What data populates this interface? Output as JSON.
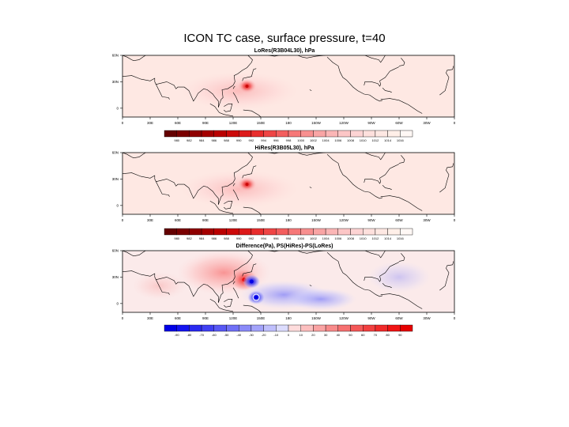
{
  "figure": {
    "title": "ICON TC case, surface pressure, t=40"
  },
  "chart_data": [
    {
      "type": "heatmap",
      "title": "LoRes(R3B04L30), hPa",
      "x_tick_labels": [
        "0",
        "30E",
        "60E",
        "90E",
        "120E",
        "150E",
        "180",
        "150W",
        "120W",
        "90W",
        "60W",
        "30W",
        "0"
      ],
      "y_tick_labels": [
        "60N",
        "30N",
        "0"
      ],
      "xlim": [
        0,
        360
      ],
      "ylim": [
        -10,
        60
      ],
      "colorbar": {
        "labels": [
          "980",
          "982",
          "984",
          "986",
          "988",
          "990",
          "992",
          "994",
          "996",
          "998",
          "1000",
          "1002",
          "1004",
          "1006",
          "1008",
          "1010",
          "1012",
          "1014",
          "1016"
        ],
        "colors": [
          "#640000",
          "#7a0000",
          "#8f0000",
          "#a50000",
          "#ba0000",
          "#cc0a0a",
          "#dd1a1a",
          "#e82d2d",
          "#ef4545",
          "#f35e5e",
          "#f67878",
          "#f89090",
          "#f9a5a5",
          "#fbb6b6",
          "#fcc6c6",
          "#fdd4d4",
          "#fee0dd",
          "#fee8e3",
          "#ffefe8",
          "#fff8f5"
        ]
      },
      "background_value": 1014,
      "storm_center": {
        "lon": 135,
        "lat": 25
      },
      "storm_min_value": 990
    },
    {
      "type": "heatmap",
      "title": "HiRes(R3B05L30), hPa",
      "x_tick_labels": [
        "0",
        "30E",
        "60E",
        "90E",
        "120E",
        "150E",
        "180",
        "150W",
        "120W",
        "90W",
        "60W",
        "30W",
        "0"
      ],
      "y_tick_labels": [
        "60N",
        "30N",
        "0"
      ],
      "xlim": [
        0,
        360
      ],
      "ylim": [
        -10,
        60
      ],
      "colorbar": {
        "labels": [
          "980",
          "982",
          "984",
          "986",
          "988",
          "990",
          "992",
          "994",
          "996",
          "998",
          "1000",
          "1002",
          "1004",
          "1006",
          "1008",
          "1010",
          "1012",
          "1014",
          "1016"
        ],
        "colors": [
          "#640000",
          "#7a0000",
          "#8f0000",
          "#a50000",
          "#ba0000",
          "#cc0a0a",
          "#dd1a1a",
          "#e82d2d",
          "#ef4545",
          "#f35e5e",
          "#f67878",
          "#f89090",
          "#f9a5a5",
          "#fbb6b6",
          "#fcc6c6",
          "#fdd4d4",
          "#fee0dd",
          "#fee8e3",
          "#ffefe8",
          "#fff8f5"
        ]
      },
      "background_value": 1014,
      "storm_center": {
        "lon": 135,
        "lat": 24
      },
      "storm_min_value": 990
    },
    {
      "type": "heatmap",
      "title": "Difference(Pa), PS(HiRes)-PS(LoRes)",
      "x_tick_labels": [
        "0",
        "30E",
        "60E",
        "90E",
        "120E",
        "150E",
        "180",
        "150W",
        "120W",
        "90W",
        "60W",
        "30W",
        "0"
      ],
      "y_tick_labels": [
        "60N",
        "30N",
        "0"
      ],
      "xlim": [
        0,
        360
      ],
      "ylim": [
        -10,
        60
      ],
      "colorbar": {
        "labels": [
          "-90",
          "-80",
          "-70",
          "-60",
          "-50",
          "-40",
          "-30",
          "-20",
          "-10",
          "0",
          "10",
          "20",
          "30",
          "40",
          "50",
          "60",
          "70",
          "80",
          "90"
        ],
        "colors": [
          "#0000e6",
          "#1414f0",
          "#2a2af0",
          "#4040f2",
          "#5858f4",
          "#7070f6",
          "#8a8af8",
          "#a3a3fa",
          "#bfbffc",
          "#dcdcfe",
          "#fedcdc",
          "#fcbfbf",
          "#faa3a3",
          "#f88a8a",
          "#f67070",
          "#f45858",
          "#f24040",
          "#f02a2a",
          "#f01414",
          "#e60000"
        ]
      },
      "features": [
        {
          "kind": "positive",
          "lon": 132,
          "lat": 27,
          "value": 90
        },
        {
          "kind": "negative",
          "lon": 140,
          "lat": 25,
          "value": -90
        },
        {
          "kind": "negative",
          "lon": 145,
          "lat": 7,
          "value": -90
        }
      ]
    }
  ]
}
